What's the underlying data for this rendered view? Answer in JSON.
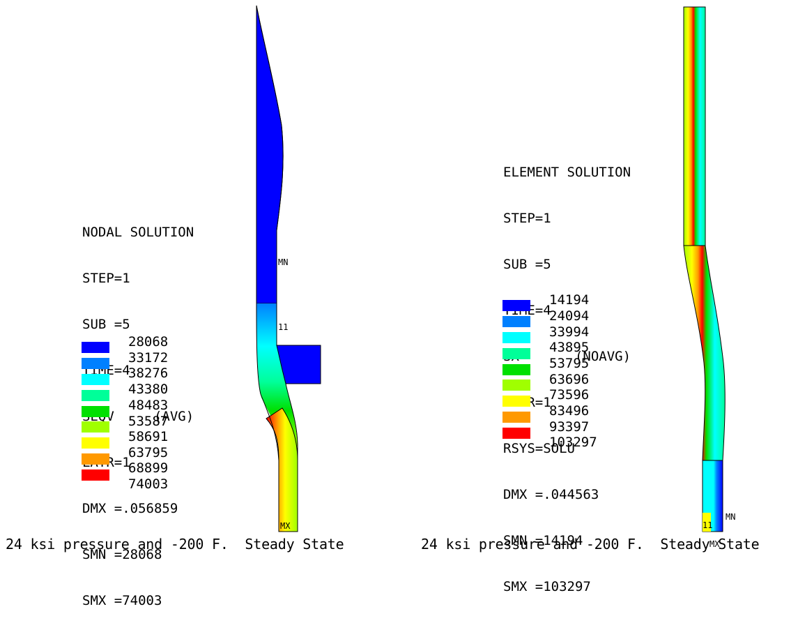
{
  "left": {
    "header": [
      "NODAL SOLUTION",
      "STEP=1",
      "SUB =5",
      "TIME=4",
      "SEQV     (AVG)",
      "LAYR=1",
      "DMX =.056859",
      "SMN =28068",
      "SMX =74003"
    ],
    "contours": [
      "28068",
      "33172",
      "38276",
      "43380",
      "48483",
      "53587",
      "58691",
      "63795",
      "68899",
      "74003"
    ],
    "markers": {
      "mn": "MN",
      "node": "11",
      "mx": "MX"
    },
    "caption": "24 ksi pressure and -200 F.  Steady State"
  },
  "right": {
    "header": [
      "ELEMENT SOLUTION",
      "STEP=1",
      "SUB =5",
      "TIME=4",
      "SX       (NOAVG)",
      "LAYR=1",
      "RSYS=SOLU",
      "DMX =.044563",
      "SMN =14194",
      "SMX =103297"
    ],
    "contours": [
      "14194",
      "24094",
      "33994",
      "43895",
      "53795",
      "63696",
      "73596",
      "83496",
      "93397",
      "103297"
    ],
    "markers": {
      "mn": "MN",
      "node": "11",
      "mx": "MX"
    },
    "caption": "24 ksi pressure and -200 F.  Steady State"
  },
  "colors": {
    "band1": "#0000ff",
    "band2": "#0080ff",
    "band3": "#00ffff",
    "band4": "#00ff99",
    "band5": "#00e000",
    "band6": "#a0ff00",
    "band7": "#ffff00",
    "band8": "#ff9900",
    "band9": "#ff0000"
  }
}
